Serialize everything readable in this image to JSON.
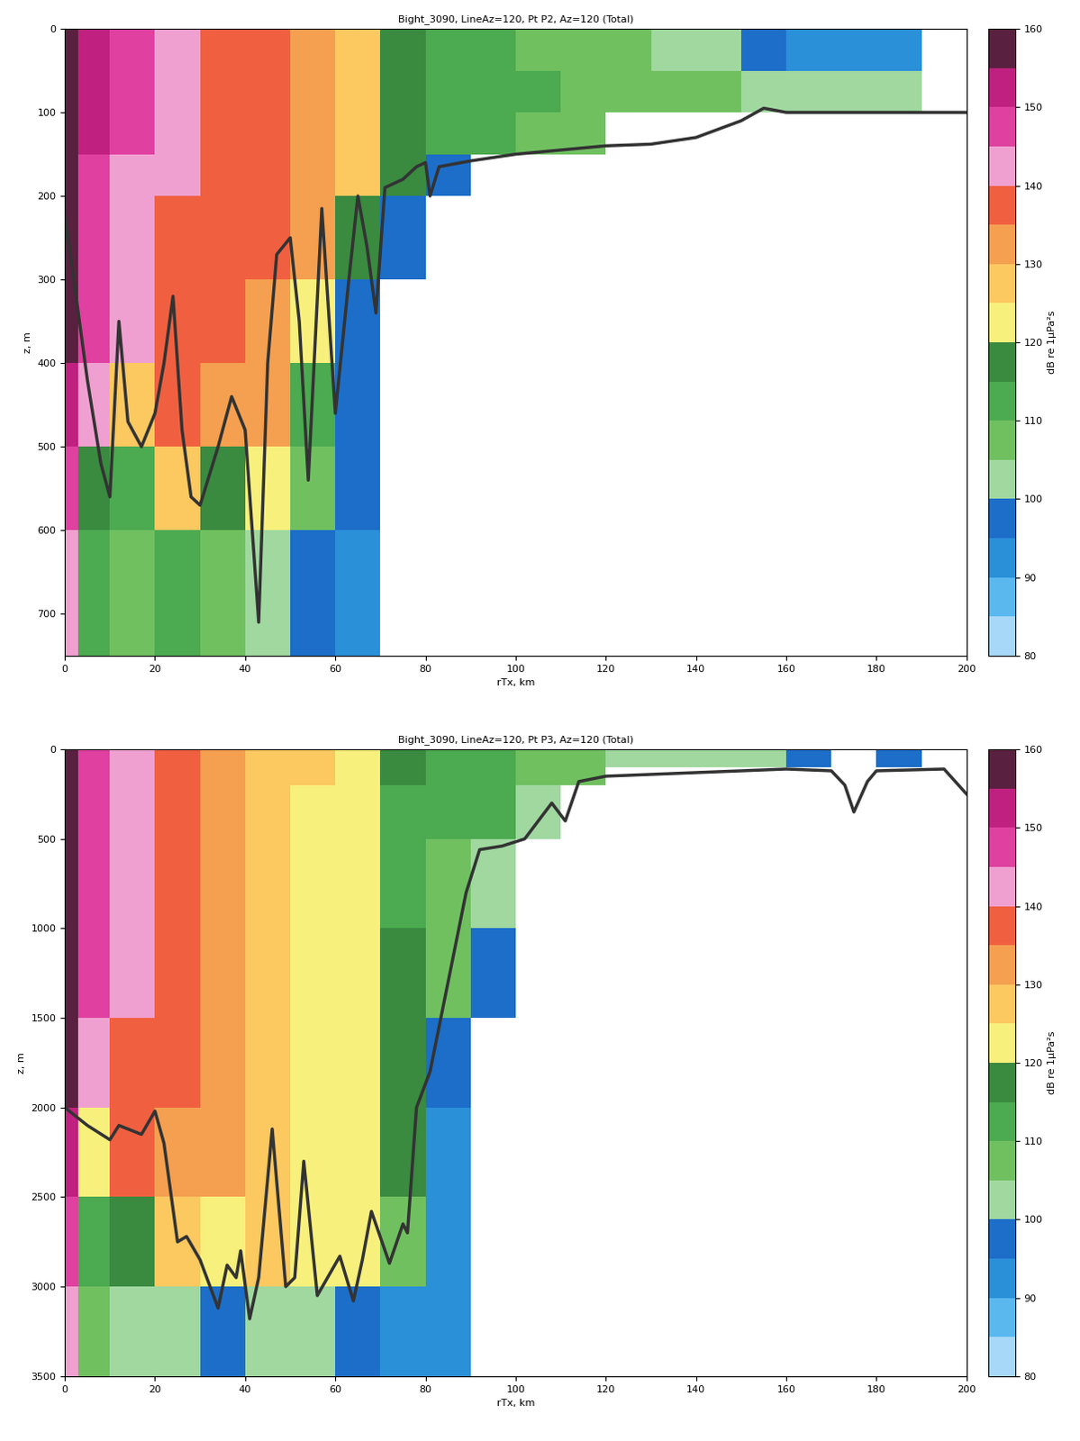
{
  "chart_data": [
    {
      "type": "heatmap",
      "title": "Bight_3090, LineAz=120, Pt P2, Az=120 (Total)",
      "x_label": "rTx, km",
      "y_label": "z, m",
      "xlim": [
        0,
        200
      ],
      "ylim": [
        750,
        0
      ],
      "xticks": [
        0,
        20,
        40,
        60,
        80,
        100,
        120,
        140,
        160,
        180,
        200
      ],
      "yticks": [
        0,
        100,
        200,
        300,
        400,
        500,
        600,
        700
      ],
      "x_edges": [
        0,
        3,
        10,
        20,
        30,
        40,
        50,
        60,
        70,
        80,
        90,
        100,
        110,
        120,
        130,
        140,
        150,
        160,
        170,
        180,
        190,
        200
      ],
      "z_edges": [
        0,
        50,
        100,
        150,
        200,
        300,
        400,
        500,
        600,
        750
      ],
      "cells": [
        [
          155,
          150,
          145,
          140,
          137,
          135,
          132,
          128,
          118,
          112,
          110,
          108,
          106,
          105,
          103,
          100,
          95,
          93,
          92,
          92,
          null
        ],
        [
          155,
          150,
          145,
          140,
          137,
          135,
          132,
          128,
          118,
          112,
          110,
          110,
          108,
          107,
          106,
          105,
          102,
          102,
          102,
          102,
          null
        ],
        [
          155,
          150,
          145,
          140,
          137,
          135,
          132,
          128,
          118,
          112,
          110,
          108,
          105,
          null,
          null,
          null,
          null,
          null,
          null,
          null,
          null
        ],
        [
          155,
          148,
          143,
          140,
          137,
          135,
          132,
          126,
          115,
          95,
          null,
          null,
          null,
          null,
          null,
          null,
          null,
          null,
          null,
          null,
          null
        ],
        [
          155,
          145,
          142,
          138,
          137,
          135,
          130,
          118,
          95,
          null,
          null,
          null,
          null,
          null,
          null,
          null,
          null,
          null,
          null,
          null,
          null
        ],
        [
          155,
          145,
          140,
          138,
          135,
          130,
          120,
          98,
          null,
          null,
          null,
          null,
          null,
          null,
          null,
          null,
          null,
          null,
          null,
          null,
          null
        ],
        [
          150,
          140,
          128,
          138,
          132,
          130,
          110,
          98,
          null,
          null,
          null,
          null,
          null,
          null,
          null,
          null,
          null,
          null,
          null,
          null,
          null
        ],
        [
          145,
          115,
          112,
          125,
          118,
          120,
          105,
          95,
          null,
          null,
          null,
          null,
          null,
          null,
          null,
          null,
          null,
          null,
          null,
          null,
          null
        ],
        [
          140,
          110,
          108,
          110,
          105,
          100,
          95,
          92,
          null,
          null,
          null,
          null,
          null,
          null,
          null,
          null,
          null,
          null,
          null,
          null,
          null
        ]
      ],
      "bathymetry": {
        "color": "#333333",
        "x": [
          0,
          2,
          5,
          8,
          10,
          12,
          14,
          17,
          20,
          22,
          24,
          26,
          28,
          30,
          34,
          37,
          40,
          43,
          45,
          47,
          50,
          52,
          54,
          57,
          60,
          63,
          65,
          67,
          69,
          71,
          75,
          78,
          80,
          81,
          83,
          90,
          100,
          110,
          120,
          130,
          140,
          150,
          155,
          160,
          170,
          180,
          190,
          200
        ],
        "z": [
          220,
          300,
          420,
          520,
          560,
          350,
          470,
          500,
          460,
          400,
          320,
          480,
          560,
          570,
          500,
          440,
          480,
          710,
          400,
          270,
          250,
          350,
          540,
          215,
          460,
          300,
          200,
          260,
          340,
          190,
          180,
          165,
          160,
          200,
          165,
          158,
          150,
          145,
          140,
          138,
          130,
          110,
          95,
          100,
          100,
          100,
          100,
          100
        ]
      },
      "colorbar": {
        "label": "dB re 1μPa²s",
        "range": [
          80,
          160
        ],
        "ticks": [
          80,
          90,
          100,
          110,
          120,
          130,
          140,
          150,
          160
        ],
        "levels": [
          80,
          85,
          90,
          95,
          100,
          105,
          110,
          115,
          120,
          125,
          130,
          135,
          140,
          145,
          150,
          155,
          160
        ],
        "colors": [
          "#a8d8f8",
          "#5ab8ee",
          "#2a90d8",
          "#1c6ec8",
          "#a0d8a0",
          "#70c060",
          "#4caa50",
          "#3a8a40",
          "#f8f07c",
          "#fcc860",
          "#f5a050",
          "#f06040",
          "#f0a0d0",
          "#e040a0",
          "#c0207f",
          "#5a2040"
        ]
      }
    },
    {
      "type": "heatmap",
      "title": "Bight_3090, LineAz=120, Pt P3, Az=120 (Total)",
      "x_label": "rTx, km",
      "y_label": "z, m",
      "xlim": [
        0,
        200
      ],
      "ylim": [
        3500,
        0
      ],
      "xticks": [
        0,
        20,
        40,
        60,
        80,
        100,
        120,
        140,
        160,
        180,
        200
      ],
      "yticks": [
        0,
        500,
        1000,
        1500,
        2000,
        2500,
        3000,
        3500
      ],
      "x_edges": [
        0,
        3,
        10,
        20,
        30,
        40,
        50,
        60,
        70,
        80,
        90,
        100,
        110,
        120,
        130,
        140,
        150,
        160,
        170,
        180,
        190,
        200
      ],
      "z_edges": [
        0,
        100,
        200,
        500,
        1000,
        1500,
        2000,
        2500,
        3000,
        3500
      ],
      "cells": [
        [
          155,
          148,
          140,
          135,
          130,
          127,
          125,
          122,
          115,
          110,
          110,
          108,
          106,
          104,
          103,
          102,
          100,
          98,
          null,
          95,
          null
        ],
        [
          155,
          148,
          140,
          135,
          130,
          127,
          125,
          122,
          115,
          110,
          110,
          108,
          105,
          null,
          null,
          null,
          null,
          null,
          null,
          null,
          null
        ],
        [
          155,
          145,
          140,
          135,
          130,
          127,
          124,
          120,
          112,
          110,
          110,
          100,
          null,
          null,
          null,
          null,
          null,
          null,
          null,
          null,
          null
        ],
        [
          155,
          145,
          140,
          135,
          130,
          127,
          124,
          120,
          112,
          108,
          100,
          null,
          null,
          null,
          null,
          null,
          null,
          null,
          null,
          null,
          null
        ],
        [
          155,
          145,
          140,
          135,
          130,
          127,
          124,
          120,
          115,
          105,
          95,
          null,
          null,
          null,
          null,
          null,
          null,
          null,
          null,
          null,
          null
        ],
        [
          155,
          143,
          138,
          135,
          130,
          127,
          124,
          120,
          115,
          95,
          null,
          null,
          null,
          null,
          null,
          null,
          null,
          null,
          null,
          null,
          null
        ],
        [
          150,
          120,
          135,
          133,
          130,
          127,
          124,
          122,
          118,
          92,
          null,
          null,
          null,
          null,
          null,
          null,
          null,
          null,
          null,
          null,
          null
        ],
        [
          145,
          110,
          115,
          128,
          120,
          125,
          122,
          120,
          105,
          90,
          null,
          null,
          null,
          null,
          null,
          null,
          null,
          null,
          null,
          null,
          null
        ],
        [
          140,
          105,
          102,
          100,
          98,
          100,
          100,
          98,
          92,
          90,
          null,
          null,
          null,
          null,
          null,
          null,
          null,
          null,
          null,
          null,
          null
        ]
      ],
      "bathymetry": {
        "color": "#333333",
        "x": [
          0,
          5,
          10,
          12,
          17,
          20,
          22,
          25,
          27,
          30,
          34,
          36,
          38,
          39,
          41,
          43,
          46,
          49,
          51,
          53,
          56,
          61,
          64,
          66,
          68,
          72,
          75,
          76,
          78,
          81,
          85,
          89,
          92,
          97,
          102,
          108,
          111,
          114,
          120,
          140,
          160,
          170,
          173,
          175,
          178,
          180,
          195,
          200
        ],
        "z": [
          2000,
          2100,
          2180,
          2100,
          2150,
          2020,
          2200,
          2750,
          2720,
          2850,
          3120,
          2880,
          2950,
          2800,
          3180,
          2950,
          2120,
          3000,
          2950,
          2300,
          3050,
          2830,
          3080,
          2850,
          2580,
          2870,
          2650,
          2700,
          2000,
          1800,
          1300,
          800,
          560,
          540,
          500,
          300,
          400,
          180,
          150,
          130,
          110,
          120,
          200,
          350,
          180,
          120,
          110,
          250
        ]
      },
      "colorbar": {
        "label": "dB re 1μPa²s",
        "range": [
          80,
          160
        ],
        "ticks": [
          80,
          90,
          100,
          110,
          120,
          130,
          140,
          150,
          160
        ],
        "levels": [
          80,
          85,
          90,
          95,
          100,
          105,
          110,
          115,
          120,
          125,
          130,
          135,
          140,
          145,
          150,
          155,
          160
        ],
        "colors": [
          "#a8d8f8",
          "#5ab8ee",
          "#2a90d8",
          "#1c6ec8",
          "#a0d8a0",
          "#70c060",
          "#4caa50",
          "#3a8a40",
          "#f8f07c",
          "#fcc860",
          "#f5a050",
          "#f06040",
          "#f0a0d0",
          "#e040a0",
          "#c0207f",
          "#5a2040"
        ]
      }
    }
  ]
}
